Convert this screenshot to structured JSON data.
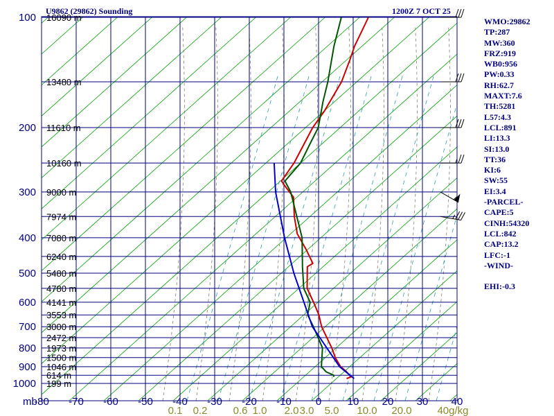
{
  "header": {
    "station_title": "U9862 (29862) Sounding",
    "time_title": "1200Z  7 OCT 25"
  },
  "indices": [
    "WMO:29862",
    "TP:287",
    "MW:360",
    "FRZ:919",
    "WB0:956",
    "PW:0.33",
    "RH:62.7",
    "MAXT:7.6",
    "TH:5281",
    "L57:4.3",
    "LCL:891",
    "LI:13.3",
    "SI:13.0",
    "TT:36",
    "KI:6",
    "SW:55",
    "EI:3.4",
    "-PARCEL-",
    "CAPE:5",
    "CINH:54320",
    "LCL:842",
    "CAP:13.2",
    "LFC:-1",
    "-WIND-",
    "",
    "EHI:-0.3"
  ],
  "colors": {
    "grid": "#000080",
    "temperature": "#cc0000",
    "dewpoint": "#005500",
    "parcel": "#0000cc",
    "dry_adiabat": "#00a000",
    "moist_adiabat": "#808060",
    "mixing_ratio": "#2aa0b0"
  },
  "chart_data": {
    "type": "skew-t log-p sounding",
    "pressure_unit": "mb",
    "temperature_unit": "°C",
    "pressure_ticks": [
      100,
      200,
      300,
      400,
      500,
      600,
      700,
      800,
      900,
      1000
    ],
    "pressure_labels": [
      "100",
      "200",
      "300",
      "400",
      "500",
      "600",
      "700",
      "800",
      "900",
      "1000"
    ],
    "temperature_ticks": [
      -80,
      -70,
      -60,
      -50,
      -40,
      -30,
      -20,
      -10,
      0,
      10,
      20,
      30,
      40
    ],
    "temperature_labels": [
      "-80",
      "-70",
      "-60",
      "-50",
      "-40",
      "-30",
      "-20",
      "-10",
      "0",
      "10",
      "20",
      "30",
      "40"
    ],
    "axis_unit_label": "mb",
    "mixing_ratio_labels": [
      "0.1",
      "0.2",
      "0.6",
      "1.0",
      "2.0",
      "3.0",
      "5.0",
      "10.0",
      "20.0",
      "40g/kg"
    ],
    "height_labels": [
      {
        "p": 100,
        "label": "16090 m"
      },
      {
        "p": 150,
        "label": "13480 m"
      },
      {
        "p": 200,
        "label": "11610 m"
      },
      {
        "p": 250,
        "label": "10160 m"
      },
      {
        "p": 300,
        "label": "9000 m"
      },
      {
        "p": 350,
        "label": "7974 m"
      },
      {
        "p": 400,
        "label": "7080 m"
      },
      {
        "p": 450,
        "label": "6240 m"
      },
      {
        "p": 500,
        "label": "5480 m"
      },
      {
        "p": 550,
        "label": "4780 m"
      },
      {
        "p": 600,
        "label": "4141 m"
      },
      {
        "p": 650,
        "label": "3553 m"
      },
      {
        "p": 700,
        "label": "3000 m"
      },
      {
        "p": 750,
        "label": "2472 m"
      },
      {
        "p": 800,
        "label": "1973 m"
      },
      {
        "p": 850,
        "label": "1500 m"
      },
      {
        "p": 900,
        "label": "1046 m"
      },
      {
        "p": 950,
        "label": "614 m"
      },
      {
        "p": 1000,
        "label": "199 m"
      }
    ],
    "series": [
      {
        "key": "temperature",
        "points": [
          [
            970,
            2.3
          ],
          [
            960,
            3.2
          ],
          [
            925,
            0.2
          ],
          [
            900,
            -2.4
          ],
          [
            850,
            -6.2
          ],
          [
            800,
            -9.6
          ],
          [
            700,
            -17.8
          ],
          [
            650,
            -21.5
          ],
          [
            600,
            -26.2
          ],
          [
            550,
            -31.5
          ],
          [
            480,
            -36.8
          ],
          [
            470,
            -36.0
          ],
          [
            430,
            -41.5
          ],
          [
            390,
            -47.9
          ],
          [
            350,
            -53.0
          ],
          [
            310,
            -58.0
          ],
          [
            290,
            -63.0
          ],
          [
            280,
            -65.5
          ],
          [
            250,
            -66.3
          ],
          [
            200,
            -69.6
          ],
          [
            180,
            -70.3
          ],
          [
            150,
            -72.5
          ],
          [
            130,
            -75.6
          ],
          [
            120,
            -77.5
          ],
          [
            100,
            -80.6
          ]
        ]
      },
      {
        "key": "dewpoint",
        "points": [
          [
            960,
            -1.8
          ],
          [
            950,
            -2.3
          ],
          [
            930,
            -5.3
          ],
          [
            900,
            -8.0
          ],
          [
            800,
            -12.3
          ],
          [
            700,
            -20.2
          ],
          [
            650,
            -24.8
          ],
          [
            600,
            -27.2
          ],
          [
            550,
            -32.5
          ],
          [
            480,
            -38.2
          ],
          [
            400,
            -45.5
          ],
          [
            300,
            -60.1
          ],
          [
            280,
            -64.5
          ],
          [
            250,
            -64.4
          ],
          [
            220,
            -66.5
          ],
          [
            200,
            -68.0
          ],
          [
            170,
            -73.0
          ],
          [
            150,
            -76.5
          ],
          [
            120,
            -83.5
          ],
          [
            100,
            -88.5
          ]
        ]
      },
      {
        "key": "parcel",
        "points": [
          [
            970,
            4.5
          ],
          [
            900,
            -2.7
          ],
          [
            700,
            -20.5
          ],
          [
            500,
            -39.1
          ],
          [
            400,
            -50.6
          ],
          [
            300,
            -64.5
          ],
          [
            250,
            -72.1
          ]
        ]
      }
    ],
    "winds": [
      {
        "p": 100,
        "dir": 270,
        "kt": 30
      },
      {
        "p": 150,
        "dir": 270,
        "kt": 30
      },
      {
        "p": 200,
        "dir": 270,
        "kt": 30
      },
      {
        "p": 250,
        "dir": 270,
        "kt": 25
      },
      {
        "p": 300,
        "dir": 300,
        "kt": 55
      },
      {
        "p": 350,
        "dir": 280,
        "kt": 35
      }
    ]
  }
}
